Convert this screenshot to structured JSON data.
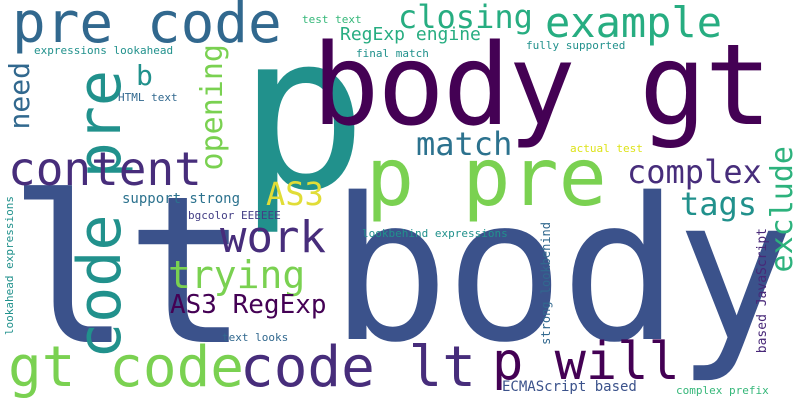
{
  "words": [
    {
      "text": "body",
      "color": "#3b528b"
    },
    {
      "text": "lt",
      "color": "#3b528b"
    },
    {
      "text": "p",
      "color": "#21918c"
    },
    {
      "text": "body gt",
      "color": "#440154"
    },
    {
      "text": "p pre",
      "color": "#7ad151"
    },
    {
      "text": "pre code",
      "color": "#31688e"
    },
    {
      "text": "code pre",
      "color": "#21918c"
    },
    {
      "text": "gt code",
      "color": "#7ad151"
    },
    {
      "text": "code lt",
      "color": "#472d7b"
    },
    {
      "text": "p will",
      "color": "#440154"
    },
    {
      "text": "content",
      "color": "#472d7b"
    },
    {
      "text": "example",
      "color": "#27ad81"
    },
    {
      "text": "closing",
      "color": "#27ad81"
    },
    {
      "text": "work",
      "color": "#472d7b"
    },
    {
      "text": "match",
      "color": "#2c728e"
    },
    {
      "text": "trying",
      "color": "#7ad151"
    },
    {
      "text": "AS3",
      "color": "#e1dd37"
    },
    {
      "text": "AS3 RegExp",
      "color": "#440154"
    },
    {
      "text": "complex",
      "color": "#472d7b"
    },
    {
      "text": "tags",
      "color": "#21918c"
    },
    {
      "text": "exclude",
      "color": "#2db27d"
    },
    {
      "text": "opening",
      "color": "#7ad151"
    },
    {
      "text": "need",
      "color": "#31688e"
    },
    {
      "text": "b",
      "color": "#21918c"
    },
    {
      "text": "RegExp engine",
      "color": "#27ad81"
    },
    {
      "text": "support strong",
      "color": "#2c728e"
    },
    {
      "text": "HTML text",
      "color": "#31688e"
    },
    {
      "text": "test text",
      "color": "#35b779"
    },
    {
      "text": "expressions lookahead",
      "color": "#21918c"
    },
    {
      "text": "final match",
      "color": "#21918c"
    },
    {
      "text": "fully supported",
      "color": "#21918c"
    },
    {
      "text": "actual test",
      "color": "#dde318"
    },
    {
      "text": "bgcolor EEEEEE",
      "color": "#433e85"
    },
    {
      "text": "lookbehind expressions",
      "color": "#21918c"
    },
    {
      "text": "strong lookbehind",
      "color": "#31688e"
    },
    {
      "text": "text looks",
      "color": "#31688e"
    },
    {
      "text": "lookahead expressions",
      "color": "#21918c"
    },
    {
      "text": "based JavaScript",
      "color": "#482878"
    },
    {
      "text": "ECMAScript based",
      "color": "#3b528b"
    },
    {
      "text": "complex prefix",
      "color": "#35b779"
    }
  ]
}
